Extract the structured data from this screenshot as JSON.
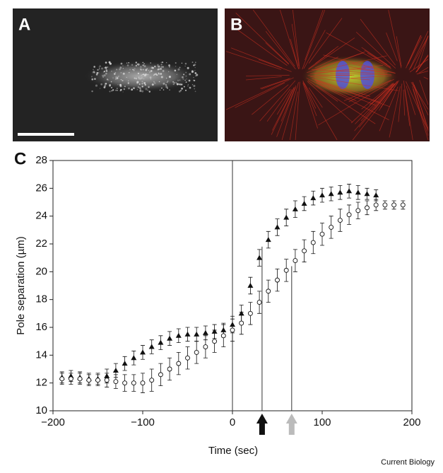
{
  "panels": [
    {
      "label": "A"
    },
    {
      "label": "B"
    }
  ],
  "chart_data": {
    "type": "line",
    "label": "C",
    "x_label": "Time (sec)",
    "y_label": "Pole separation (µm)",
    "xlim": [
      -200,
      200
    ],
    "xticks": [
      {
        "value": -200,
        "label": "−200"
      },
      {
        "value": -100,
        "label": "−100"
      },
      0,
      100,
      200
    ],
    "ylim": [
      10,
      28
    ],
    "yticks": [
      10,
      12,
      14,
      16,
      18,
      20,
      22,
      24,
      26,
      28
    ],
    "series": [
      {
        "marker": "triangle",
        "color": "#111111",
        "x": [
          -190,
          -180,
          -170,
          -160,
          -150,
          -140,
          -130,
          -120,
          -110,
          -100,
          -90,
          -80,
          -70,
          -60,
          -50,
          -40,
          -30,
          -20,
          -10,
          0,
          10,
          20,
          30,
          40,
          50,
          60,
          70,
          80,
          90,
          100,
          110,
          120,
          130,
          140,
          150,
          160
        ],
        "values": [
          12.4,
          12.5,
          12.4,
          12.3,
          12.3,
          12.5,
          12.9,
          13.4,
          13.8,
          14.2,
          14.6,
          14.9,
          15.2,
          15.4,
          15.5,
          15.5,
          15.6,
          15.7,
          15.8,
          16.2,
          17.0,
          19.0,
          21.0,
          22.3,
          23.2,
          23.9,
          24.5,
          24.9,
          25.3,
          25.5,
          25.6,
          25.7,
          25.8,
          25.7,
          25.6,
          25.5
        ],
        "errors": [
          0.4,
          0.4,
          0.4,
          0.4,
          0.4,
          0.5,
          0.5,
          0.5,
          0.5,
          0.5,
          0.5,
          0.5,
          0.5,
          0.5,
          0.5,
          0.5,
          0.5,
          0.5,
          0.5,
          0.6,
          0.6,
          0.6,
          0.6,
          0.6,
          0.6,
          0.6,
          0.6,
          0.5,
          0.5,
          0.5,
          0.5,
          0.5,
          0.5,
          0.5,
          0.4,
          0.4
        ]
      },
      {
        "marker": "circle",
        "color": "#111111",
        "x": [
          -190,
          -180,
          -170,
          -160,
          -150,
          -140,
          -130,
          -120,
          -110,
          -100,
          -90,
          -80,
          -70,
          -60,
          -50,
          -40,
          -30,
          -20,
          -10,
          0,
          10,
          20,
          30,
          40,
          50,
          60,
          70,
          80,
          90,
          100,
          110,
          120,
          130,
          140,
          150,
          160,
          170,
          180,
          190
        ],
        "values": [
          12.3,
          12.3,
          12.3,
          12.2,
          12.2,
          12.2,
          12.1,
          12.0,
          12.0,
          12.0,
          12.2,
          12.6,
          13.0,
          13.4,
          13.8,
          14.2,
          14.6,
          15.0,
          15.4,
          15.8,
          16.3,
          17.0,
          17.8,
          18.6,
          19.4,
          20.1,
          20.8,
          21.5,
          22.1,
          22.7,
          23.2,
          23.7,
          24.1,
          24.4,
          24.6,
          24.8,
          24.8,
          24.8,
          24.8
        ],
        "errors": [
          0.4,
          0.4,
          0.4,
          0.4,
          0.4,
          0.5,
          0.5,
          0.6,
          0.6,
          0.7,
          0.8,
          0.8,
          0.8,
          0.8,
          0.8,
          0.8,
          0.8,
          0.8,
          0.8,
          0.8,
          0.8,
          0.8,
          0.8,
          0.8,
          0.8,
          0.8,
          0.8,
          0.8,
          0.8,
          0.8,
          0.8,
          0.8,
          0.7,
          0.6,
          0.5,
          0.4,
          0.3,
          0.3,
          0.3
        ]
      }
    ],
    "vlines": [
      {
        "x": 0,
        "y_top": 28,
        "color": "#333333"
      },
      {
        "x": 33,
        "y_top": 21.8,
        "color": "#333333",
        "arrow": "#111111"
      },
      {
        "x": 66,
        "y_top": 20.4,
        "color": "#333333",
        "arrow": "#bbbbbb"
      }
    ]
  },
  "footer": "Current Biology"
}
